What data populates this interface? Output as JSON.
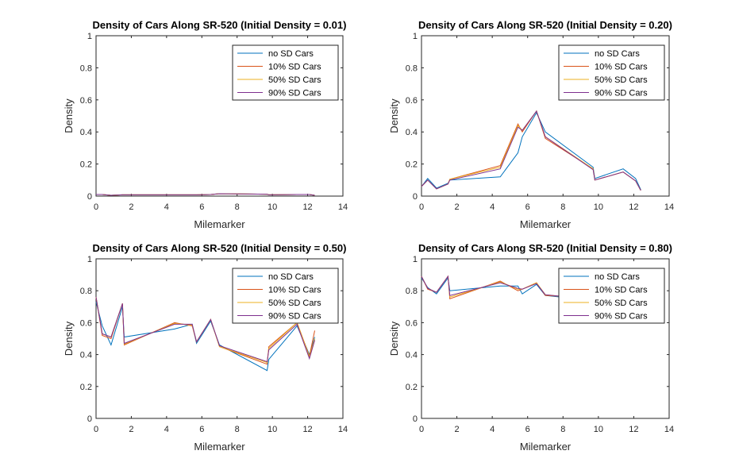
{
  "colors": {
    "no_sd": "#0072BD",
    "sd10": "#D95319",
    "sd50": "#EDB120",
    "sd90": "#7E2F8E"
  },
  "chart_data": [
    {
      "type": "line",
      "title": "Density of Cars Along SR-520 (Initial Density = 0.01)",
      "xlabel": "Milemarker",
      "ylabel": "Density",
      "xlim": [
        0,
        14
      ],
      "ylim": [
        0,
        1
      ],
      "xticks": [
        "0",
        "2",
        "4",
        "6",
        "8",
        "10",
        "12",
        "14"
      ],
      "yticks": [
        "0",
        "0.2",
        "0.4",
        "0.6",
        "0.8",
        "1"
      ],
      "legend_position": "top-right",
      "x": [
        0,
        0.35,
        0.85,
        1.5,
        1.6,
        4.45,
        5.45,
        5.7,
        6.5,
        7,
        9.7,
        9.8,
        11.4,
        12.1,
        12.4
      ],
      "series": [
        {
          "name": "no SD Cars",
          "values": [
            0.01,
            0.01,
            0.005,
            0.008,
            0.008,
            0.008,
            0.008,
            0.008,
            0.01,
            0.015,
            0.012,
            0.008,
            0.01,
            0.01,
            0.005
          ]
        },
        {
          "name": "10% SD Cars",
          "values": [
            0.01,
            0.01,
            0.005,
            0.008,
            0.008,
            0.008,
            0.008,
            0.008,
            0.01,
            0.015,
            0.012,
            0.008,
            0.01,
            0.01,
            0.005
          ]
        },
        {
          "name": "50% SD Cars",
          "values": [
            0.01,
            0.01,
            0.005,
            0.008,
            0.008,
            0.008,
            0.008,
            0.008,
            0.01,
            0.015,
            0.012,
            0.008,
            0.01,
            0.01,
            0.005
          ]
        },
        {
          "name": "90% SD Cars",
          "values": [
            0.01,
            0.01,
            0.005,
            0.008,
            0.008,
            0.008,
            0.008,
            0.008,
            0.01,
            0.015,
            0.012,
            0.008,
            0.01,
            0.01,
            0.005
          ]
        }
      ]
    },
    {
      "type": "line",
      "title": "Density of Cars Along SR-520 (Initial Density = 0.20)",
      "xlabel": "Milemarker",
      "ylabel": "Density",
      "xlim": [
        0,
        14
      ],
      "ylim": [
        0,
        1
      ],
      "xticks": [
        "0",
        "2",
        "4",
        "6",
        "8",
        "10",
        "12",
        "14"
      ],
      "yticks": [
        "0",
        "0.2",
        "0.4",
        "0.6",
        "0.8",
        "1"
      ],
      "legend_position": "top-right",
      "x": [
        0,
        0.35,
        0.85,
        1.5,
        1.6,
        4.45,
        5.45,
        5.7,
        6.5,
        7,
        9.7,
        9.8,
        11.4,
        12.1,
        12.4
      ],
      "series": [
        {
          "name": "no SD Cars",
          "values": [
            0.06,
            0.11,
            0.05,
            0.08,
            0.1,
            0.12,
            0.27,
            0.37,
            0.52,
            0.4,
            0.18,
            0.11,
            0.17,
            0.11,
            0.04
          ]
        },
        {
          "name": "10% SD Cars",
          "values": [
            0.06,
            0.1,
            0.045,
            0.075,
            0.105,
            0.19,
            0.45,
            0.4,
            0.53,
            0.36,
            0.17,
            0.1,
            0.15,
            0.095,
            0.035
          ]
        },
        {
          "name": "50% SD Cars",
          "values": [
            0.06,
            0.1,
            0.045,
            0.075,
            0.105,
            0.18,
            0.44,
            0.41,
            0.53,
            0.37,
            0.17,
            0.1,
            0.15,
            0.095,
            0.035
          ]
        },
        {
          "name": "90% SD Cars",
          "values": [
            0.06,
            0.1,
            0.045,
            0.075,
            0.1,
            0.17,
            0.43,
            0.41,
            0.53,
            0.37,
            0.165,
            0.1,
            0.15,
            0.095,
            0.035
          ]
        }
      ]
    },
    {
      "type": "line",
      "title": "Density of Cars Along SR-520 (Initial Density = 0.50)",
      "xlabel": "Milemarker",
      "ylabel": "Density",
      "xlim": [
        0,
        14
      ],
      "ylim": [
        0,
        1
      ],
      "xticks": [
        "0",
        "2",
        "4",
        "6",
        "8",
        "10",
        "12",
        "14"
      ],
      "yticks": [
        "0",
        "0.2",
        "0.4",
        "0.6",
        "0.8",
        "1"
      ],
      "legend_position": "top-right",
      "x": [
        0,
        0.35,
        0.85,
        1.5,
        1.6,
        4.45,
        5.45,
        5.7,
        6.5,
        7,
        9.7,
        9.8,
        11.4,
        12.1,
        12.4
      ],
      "series": [
        {
          "name": "no SD Cars",
          "values": [
            0.73,
            0.58,
            0.46,
            0.7,
            0.51,
            0.56,
            0.59,
            0.47,
            0.61,
            0.46,
            0.3,
            0.37,
            0.58,
            0.4,
            0.51
          ]
        },
        {
          "name": "10% SD Cars",
          "values": [
            0.76,
            0.52,
            0.5,
            0.72,
            0.46,
            0.6,
            0.58,
            0.48,
            0.62,
            0.45,
            0.34,
            0.45,
            0.6,
            0.39,
            0.55
          ]
        },
        {
          "name": "50% SD Cars",
          "values": [
            0.76,
            0.53,
            0.51,
            0.72,
            0.465,
            0.595,
            0.585,
            0.48,
            0.62,
            0.45,
            0.35,
            0.44,
            0.6,
            0.385,
            0.5
          ]
        },
        {
          "name": "90% SD Cars",
          "values": [
            0.76,
            0.53,
            0.51,
            0.72,
            0.47,
            0.59,
            0.59,
            0.48,
            0.62,
            0.455,
            0.355,
            0.43,
            0.59,
            0.375,
            0.49
          ]
        }
      ]
    },
    {
      "type": "line",
      "title": "Density of Cars Along SR-520 (Initial Density = 0.80)",
      "xlabel": "Milemarker",
      "ylabel": "Density",
      "xlim": [
        0,
        14
      ],
      "ylim": [
        0,
        1
      ],
      "xticks": [
        "0",
        "2",
        "4",
        "6",
        "8",
        "10",
        "12",
        "14"
      ],
      "yticks": [
        "0",
        "0.2",
        "0.4",
        "0.6",
        "0.8",
        "1"
      ],
      "legend_position": "top-right",
      "x": [
        0,
        0.35,
        0.85,
        1.5,
        1.6,
        4.45,
        5.45,
        5.7,
        6.5,
        7,
        7.9
      ],
      "series": [
        {
          "name": "no SD Cars",
          "values": [
            0.88,
            0.82,
            0.78,
            0.88,
            0.8,
            0.83,
            0.83,
            0.78,
            0.84,
            0.77,
            0.76
          ]
        },
        {
          "name": "10% SD Cars",
          "values": [
            0.89,
            0.81,
            0.79,
            0.89,
            0.75,
            0.86,
            0.8,
            0.81,
            0.85,
            0.77,
            0.765
          ]
        },
        {
          "name": "50% SD Cars",
          "values": [
            0.89,
            0.815,
            0.79,
            0.89,
            0.76,
            0.855,
            0.81,
            0.81,
            0.85,
            0.775,
            0.765
          ]
        },
        {
          "name": "90% SD Cars",
          "values": [
            0.89,
            0.815,
            0.79,
            0.89,
            0.77,
            0.85,
            0.815,
            0.81,
            0.845,
            0.775,
            0.765
          ]
        }
      ]
    }
  ]
}
